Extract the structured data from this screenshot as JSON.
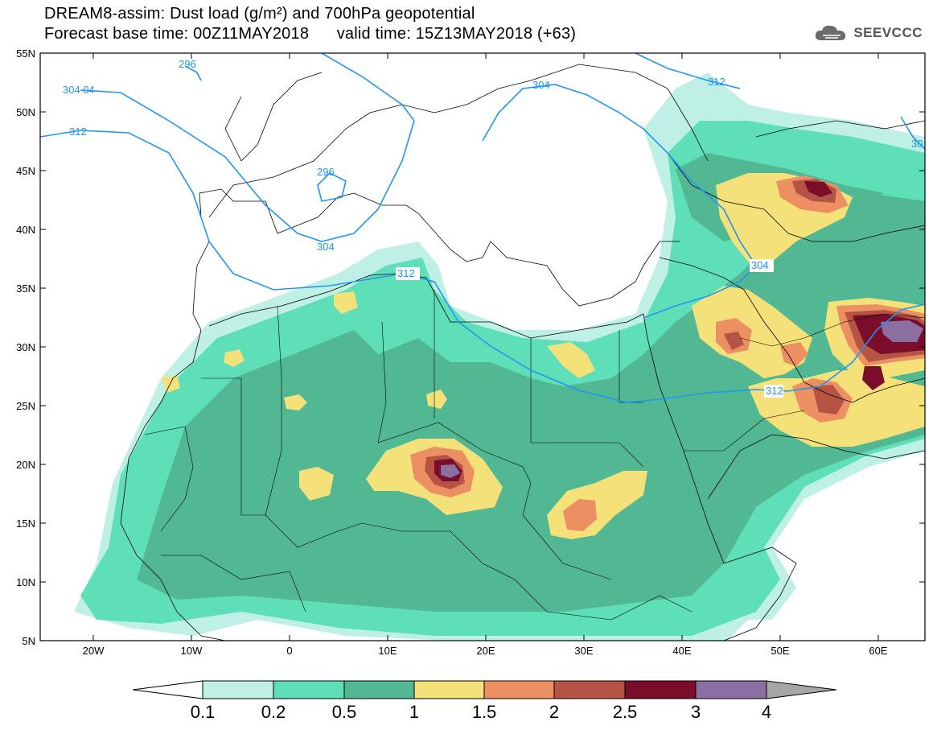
{
  "header": {
    "title_line1": "DREAM8-assim: Dust load (g/m²) and 700hPa geopotential",
    "title_line2": "Forecast base time: 00Z11MAY2018      valid time: 15Z13MAY2018 (+63)",
    "logo_text": "SEEVCCC"
  },
  "map": {
    "lat_labels": [
      "55N",
      "50N",
      "45N",
      "40N",
      "35N",
      "30N",
      "25N",
      "20N",
      "15N",
      "10N",
      "5N"
    ],
    "lon_labels": [
      "20W",
      "10W",
      "0",
      "10E",
      "20E",
      "30E",
      "40E",
      "50E",
      "60E"
    ],
    "contour_labels": [
      "296",
      "304 04",
      "312",
      "296",
      "304",
      "304",
      "312",
      "312",
      "304",
      "312",
      "30"
    ],
    "contour_color": "#2196f3"
  },
  "colorbar": {
    "labels": [
      "0.1",
      "0.2",
      "0.5",
      "1",
      "1.5",
      "2",
      "2.5",
      "3",
      "4"
    ],
    "colors": [
      "#bff0e6",
      "#5fdfb8",
      "#52b893",
      "#f4e17a",
      "#ec8f63",
      "#b55444",
      "#7a0d2a",
      "#8b6fa0",
      "#a6a6a6"
    ]
  },
  "dust_levels": {
    "c01": "#bff0e6",
    "c02": "#5fdfb8",
    "c05": "#52b893",
    "c1": "#f4e17a",
    "c15": "#ec8f63",
    "c2": "#b55444",
    "c25": "#7a0d2a",
    "c3": "#8b6fa0"
  }
}
